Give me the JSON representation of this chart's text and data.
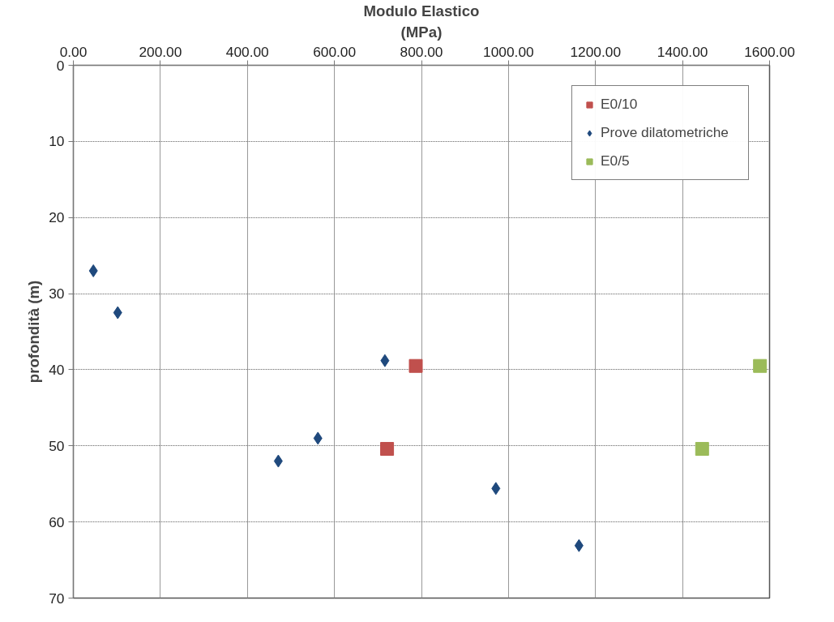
{
  "chart_data": {
    "type": "scatter",
    "xlabel": "Modulo Elastico\n(MPa)",
    "ylabel": "profondità (m)",
    "xlim": [
      0,
      1600
    ],
    "ylim": [
      70,
      0
    ],
    "xticks": [
      {
        "value": 0,
        "label": "0.00"
      },
      {
        "value": 200,
        "label": "200.00"
      },
      {
        "value": 400,
        "label": "400.00"
      },
      {
        "value": 600,
        "label": "600.00"
      },
      {
        "value": 800,
        "label": "800.00"
      },
      {
        "value": 1000,
        "label": "1000.00"
      },
      {
        "value": 1200,
        "label": "1200.00"
      },
      {
        "value": 1400,
        "label": "1400.00"
      },
      {
        "value": 1600,
        "label": "1600.00"
      }
    ],
    "yticks": [
      0,
      10,
      20,
      30,
      40,
      50,
      60,
      70
    ],
    "grid": true,
    "legend": "top right",
    "series": [
      {
        "name": "E0/10",
        "color": "#c0504d",
        "marker": "square",
        "x": [
          787,
          721
        ],
        "values": [
          39.5,
          50.4
        ]
      },
      {
        "name": "Prove dilatometriche",
        "color": "#1f497d",
        "marker": "diamond",
        "x": [
          46,
          102,
          716,
          562,
          471,
          971,
          1162
        ],
        "values": [
          27.0,
          32.5,
          38.8,
          49.0,
          52.0,
          55.6,
          63.1
        ]
      },
      {
        "name": "E0/5",
        "color": "#9bbb59",
        "marker": "square",
        "x": [
          1578,
          1445
        ],
        "values": [
          39.5,
          50.4
        ]
      }
    ]
  }
}
